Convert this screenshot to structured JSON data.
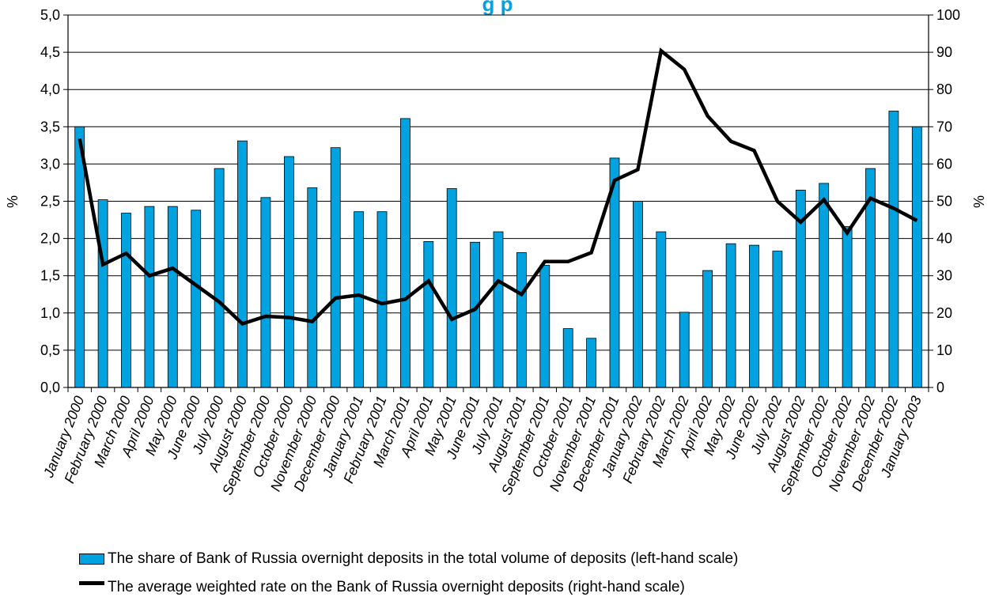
{
  "chart_data": {
    "type": "bar",
    "title": "g        p",
    "categories": [
      "January 2000",
      "February 2000",
      "March 2000",
      "April 2000",
      "May 2000",
      "June 2000",
      "July 2000",
      "August 2000",
      "September 2000",
      "October 2000",
      "November 2000",
      "December 2000",
      "January 2001",
      "February 2001",
      "March 2001",
      "April 2001",
      "May 2001",
      "June 2001",
      "July 2001",
      "August 2001",
      "September 2001",
      "October 2001",
      "November 2001",
      "December 2001",
      "January 2002",
      "February 2002",
      "March 2002",
      "April 2002",
      "May 2002",
      "June 2002",
      "July 2002",
      "August 2002",
      "September 2002",
      "October 2002",
      "November 2002",
      "December 2002",
      "January 2003"
    ],
    "series": [
      {
        "name": "The share of Bank of Russia overnight deposits in the total volume of deposits (left-hand scale)",
        "type": "bar",
        "axis": "left",
        "color": "#00a2e0",
        "values": [
          3.5,
          2.52,
          2.34,
          2.43,
          2.43,
          2.38,
          2.94,
          3.31,
          2.55,
          3.1,
          2.68,
          3.22,
          2.36,
          2.36,
          3.61,
          1.96,
          2.67,
          1.95,
          2.09,
          1.81,
          1.64,
          0.79,
          0.66,
          3.08,
          2.5,
          2.09,
          1.01,
          1.57,
          1.93,
          1.91,
          1.83,
          2.65,
          2.74,
          2.16,
          2.94,
          3.71,
          3.5
        ]
      },
      {
        "name": "The average weighted rate on the Bank of Russia overnight deposits (right-hand scale)",
        "type": "line",
        "axis": "right",
        "color": "#000000",
        "values": [
          66.8,
          33,
          36,
          30,
          32,
          27.5,
          23,
          17.1,
          19.1,
          18.8,
          17.7,
          24,
          24.8,
          22.5,
          23.7,
          28.6,
          18.3,
          21,
          28.6,
          25,
          33.8,
          33.8,
          36.2,
          55.6,
          58.5,
          90.4,
          85.4,
          72.9,
          66.1,
          63.6,
          50,
          44.4,
          50.4,
          41.5,
          50.8,
          48.1,
          44.8
        ]
      }
    ],
    "y_left": {
      "label": "%",
      "min": 0,
      "max": 5,
      "ticks": [
        "0,0",
        "0,5",
        "1,0",
        "1,5",
        "2,0",
        "2,5",
        "3,0",
        "3,5",
        "4,0",
        "4,5",
        "5,0"
      ]
    },
    "y_right": {
      "label": "%",
      "min": 0,
      "max": 100,
      "ticks": [
        "0",
        "10",
        "20",
        "30",
        "40",
        "50",
        "60",
        "70",
        "80",
        "90",
        "100"
      ]
    },
    "grid": true,
    "legend_position": "bottom"
  },
  "legend": {
    "bar_label": "The share of Bank of Russia overnight deposits in the total volume of deposits (left-hand scale)",
    "line_label": "The average weighted rate on the Bank of Russia overnight deposits (right-hand scale)"
  }
}
